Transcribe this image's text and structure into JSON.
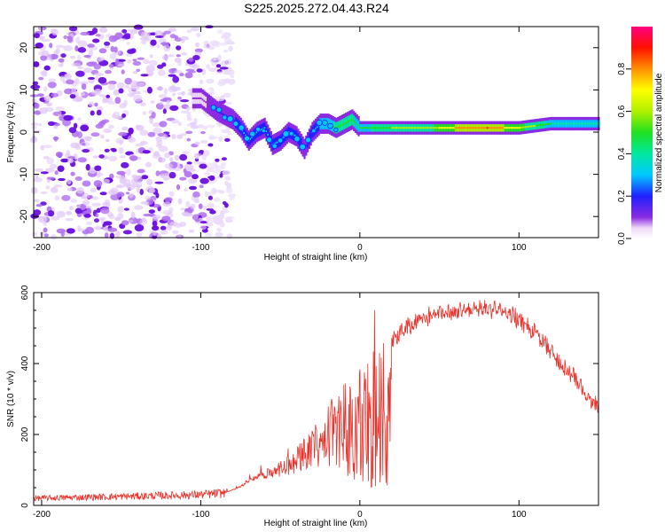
{
  "title": "S225.2025.272.04.43.R24",
  "chart_data": [
    {
      "type": "heatmap",
      "name": "spectrogram",
      "xlabel": "Height of straight line (km)",
      "ylabel": "Frequency (Hz)",
      "xlim": [
        -205,
        150
      ],
      "ylim": [
        -25,
        25
      ],
      "xticks": [
        -200,
        -100,
        0,
        100
      ],
      "yticks": [
        -20,
        -10,
        0,
        10,
        20
      ],
      "colorbar": {
        "label": "Normalized spectral amplitude",
        "range": [
          0,
          1
        ],
        "ticks": [
          0.0,
          0.2,
          0.4,
          0.6,
          0.8
        ]
      },
      "ridge": {
        "x": [
          -100,
          -90,
          -80,
          -75,
          -70,
          -65,
          -60,
          -55,
          -50,
          -45,
          -40,
          -35,
          -30,
          -25,
          -20,
          -15,
          -10,
          -5,
          0,
          10,
          20,
          40,
          60,
          80,
          100,
          120,
          150
        ],
        "y": [
          8,
          5,
          3,
          1,
          -2,
          0,
          1,
          -3,
          -2,
          0,
          -1,
          -4,
          0,
          2,
          2,
          1,
          2,
          3,
          1,
          1,
          1,
          1,
          1,
          1,
          1,
          2,
          2
        ],
        "amplitude": [
          0.1,
          0.2,
          0.25,
          0.3,
          0.3,
          0.3,
          0.3,
          0.3,
          0.3,
          0.3,
          0.3,
          0.25,
          0.3,
          0.4,
          0.5,
          0.55,
          0.55,
          0.55,
          0.5,
          0.55,
          0.6,
          0.6,
          0.8,
          0.9,
          0.7,
          0.5,
          0.45
        ]
      },
      "noise_region_x": [
        -205,
        -90
      ]
    },
    {
      "type": "line",
      "name": "snr",
      "xlabel": "Height of straight line (km)",
      "ylabel": "SNR (10 * v/v)",
      "xlim": [
        -205,
        150
      ],
      "ylim": [
        0,
        600
      ],
      "xticks": [
        -200,
        -100,
        0,
        100
      ],
      "yticks": [
        0,
        200,
        400,
        600
      ],
      "series": [
        {
          "name": "SNR",
          "color": "#e8312a",
          "envelope_x": [
            -205,
            -150,
            -100,
            -85,
            -75,
            -65,
            -55,
            -45,
            -35,
            -25,
            -15,
            -5,
            0,
            10,
            20,
            30,
            40,
            60,
            80,
            90,
            100,
            110,
            120,
            130,
            140,
            150
          ],
          "envelope_y": [
            20,
            25,
            30,
            35,
            55,
            90,
            110,
            140,
            190,
            250,
            320,
            380,
            410,
            440,
            480,
            520,
            545,
            565,
            570,
            562,
            540,
            500,
            450,
            400,
            345,
            290
          ]
        }
      ]
    }
  ]
}
